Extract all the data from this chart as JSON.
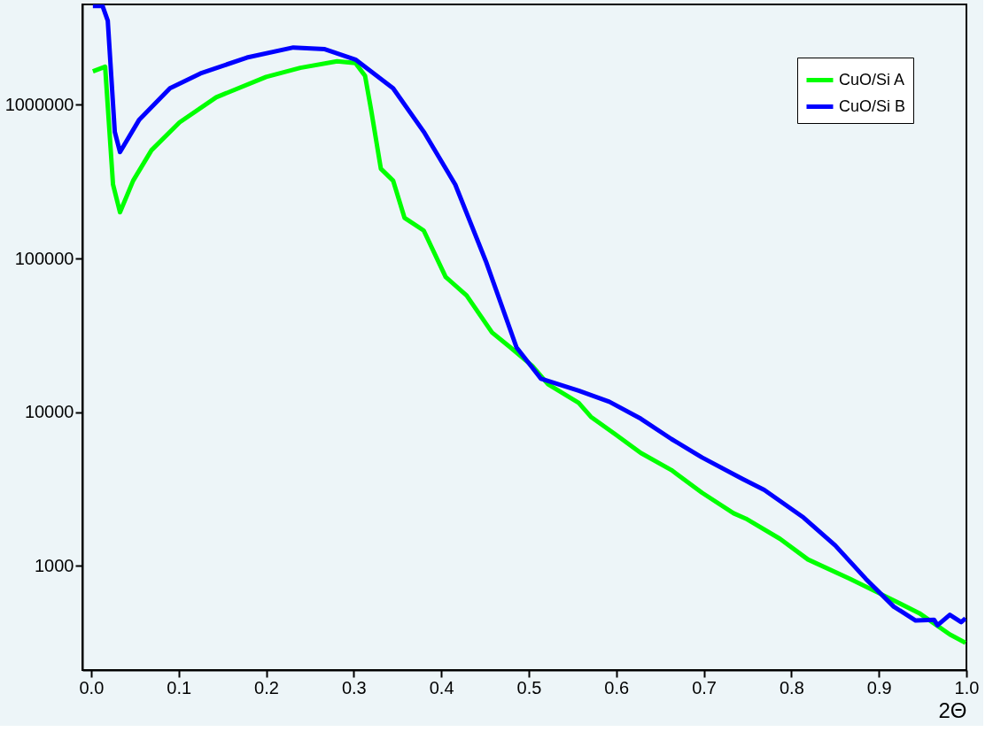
{
  "chart_data": {
    "type": "line",
    "xlabel": "2Θ",
    "log": "y",
    "grid": false,
    "legend": "top right",
    "xlim": [
      -0.01,
      1.0
    ],
    "ylim": [
      210,
      4500000
    ],
    "xticks": [
      {
        "value": 0,
        "label": "0.0"
      },
      0.1,
      0.2,
      0.3,
      0.4,
      0.5,
      0.6,
      0.7,
      0.8,
      0.9,
      {
        "value": 1,
        "label": "1.0"
      }
    ],
    "yticks": [
      1000,
      10000,
      100000,
      1000000
    ],
    "series": [
      {
        "name": "CuO/Si A",
        "color": "#00ff00",
        "x": [
          0.002,
          0.016,
          0.025,
          0.033,
          0.048,
          0.069,
          0.101,
          0.143,
          0.2,
          0.239,
          0.281,
          0.302,
          0.313,
          0.32,
          0.331,
          0.345,
          0.358,
          0.38,
          0.405,
          0.429,
          0.458,
          0.479,
          0.504,
          0.522,
          0.557,
          0.571,
          0.599,
          0.628,
          0.663,
          0.698,
          0.734,
          0.748,
          0.787,
          0.819,
          0.867,
          0.91,
          0.946,
          0.981,
          0.999
        ],
        "values": [
          1650000,
          1770000,
          303000,
          200000,
          321000,
          507000,
          769000,
          1120000,
          1520000,
          1740000,
          1920000,
          1870000,
          1540000,
          920000,
          384000,
          321000,
          184000,
          152000,
          75900,
          57400,
          33000,
          26400,
          20000,
          15200,
          11500,
          9330,
          7170,
          5430,
          4200,
          2990,
          2200,
          2030,
          1500,
          1100,
          824,
          624,
          493,
          358,
          316
        ]
      },
      {
        "name": "CuO/Si B",
        "color": "#0000ff",
        "x": [
          0.002,
          0.013,
          0.019,
          0.027,
          0.033,
          0.055,
          0.09,
          0.125,
          0.178,
          0.231,
          0.267,
          0.302,
          0.345,
          0.38,
          0.416,
          0.451,
          0.486,
          0.514,
          0.557,
          0.592,
          0.628,
          0.663,
          0.698,
          0.744,
          0.769,
          0.814,
          0.85,
          0.885,
          0.917,
          0.942,
          0.963,
          0.967,
          0.981,
          0.994,
          0.999
        ],
        "values": [
          4400000,
          4400000,
          3530000,
          668000,
          493000,
          801000,
          1280000,
          1600000,
          2030000,
          2360000,
          2300000,
          1970000,
          1280000,
          668000,
          303000,
          95900,
          26400,
          16500,
          13800,
          11700,
          9070,
          6690,
          5070,
          3680,
          3120,
          2060,
          1360,
          824,
          543,
          441,
          446,
          411,
          480,
          430,
          456
        ]
      }
    ]
  }
}
